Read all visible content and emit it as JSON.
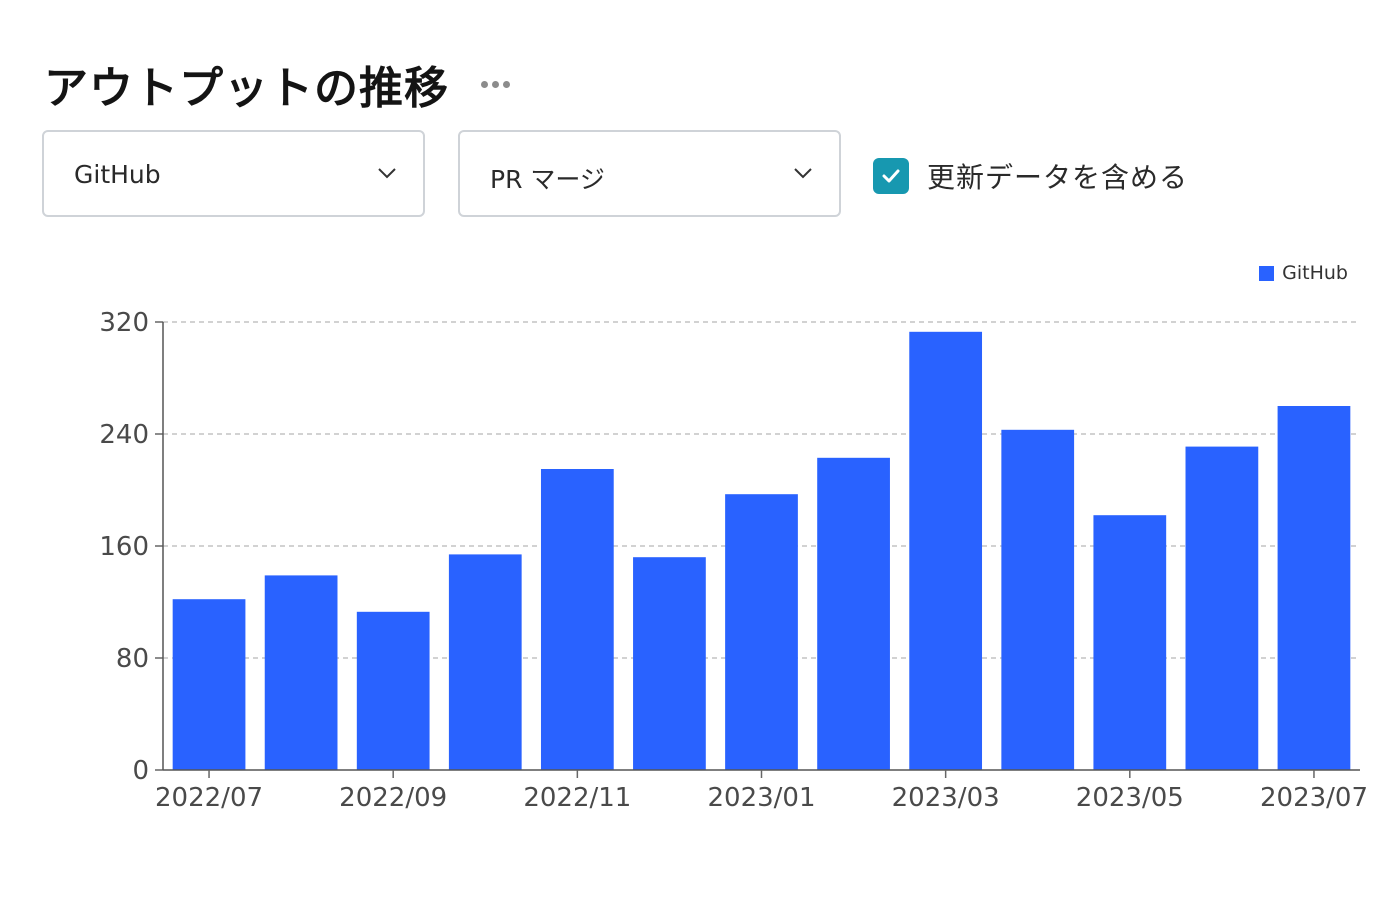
{
  "title": "アウトプットの推移",
  "filters": {
    "source": {
      "value": "GitHub"
    },
    "metric": {
      "value": "PR マージ"
    },
    "include_updates": {
      "label": "更新データを含める",
      "checked": true
    }
  },
  "colors": {
    "bar": "#2962ff",
    "checkbox": "#1798b0"
  },
  "icons": {
    "more": "more-horizontal-icon",
    "chevron": "chevron-down-icon",
    "check": "check-icon"
  },
  "chart_data": {
    "type": "bar",
    "categories": [
      "2022/07",
      "2022/08",
      "2022/09",
      "2022/10",
      "2022/11",
      "2022/12",
      "2023/01",
      "2023/02",
      "2023/03",
      "2023/04",
      "2023/05",
      "2023/06",
      "2023/07"
    ],
    "x_tick_labels": [
      "2022/07",
      "2022/09",
      "2022/11",
      "2023/01",
      "2023/03",
      "2023/05",
      "2023/07"
    ],
    "series": [
      {
        "name": "GitHub",
        "values": [
          122,
          139,
          113,
          154,
          215,
          152,
          197,
          223,
          313,
          243,
          182,
          231,
          260
        ]
      }
    ],
    "ylim": [
      0,
      320
    ],
    "yticks": [
      0,
      80,
      160,
      240,
      320
    ],
    "grid": true,
    "legend_position": "top-right",
    "xlabel": "",
    "ylabel": ""
  }
}
